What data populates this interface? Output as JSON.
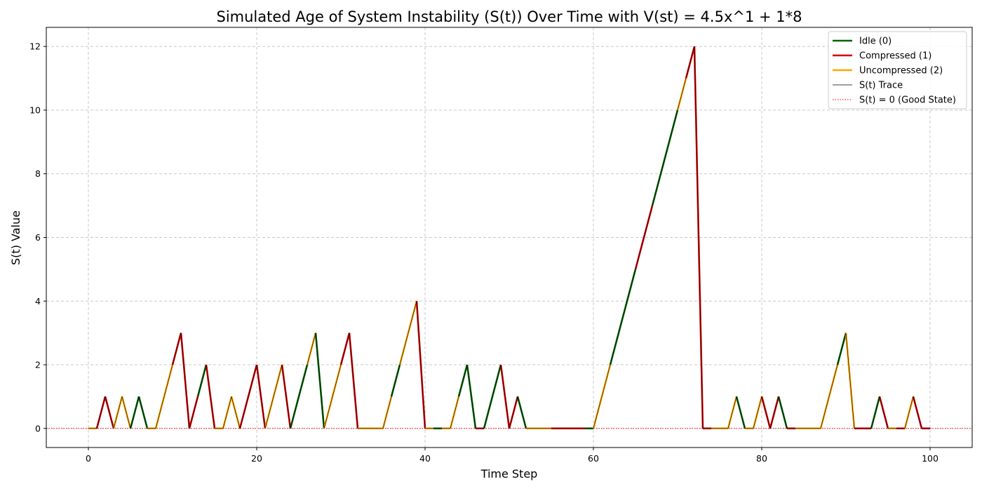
{
  "chart_data": {
    "type": "line",
    "title": "Simulated Age of System Instability (S(t)) Over Time with V(st) = 4.5x^1 + 1*8",
    "xlabel": "Time Step",
    "ylabel": "S(t) Value",
    "xlim": [
      -5,
      105
    ],
    "ylim": [
      -0.6,
      12.6
    ],
    "xticks": [
      0,
      20,
      40,
      60,
      80,
      100
    ],
    "yticks": [
      0,
      2,
      4,
      6,
      8,
      10,
      12
    ],
    "grid": true,
    "legend_position": "top-right",
    "x": [
      0,
      1,
      2,
      3,
      4,
      5,
      6,
      7,
      8,
      9,
      10,
      11,
      12,
      13,
      14,
      15,
      16,
      17,
      18,
      19,
      20,
      21,
      22,
      23,
      24,
      25,
      26,
      27,
      28,
      29,
      30,
      31,
      32,
      33,
      34,
      35,
      36,
      37,
      38,
      39,
      40,
      41,
      42,
      43,
      44,
      45,
      46,
      47,
      48,
      49,
      50,
      51,
      52,
      53,
      54,
      55,
      56,
      57,
      58,
      59,
      60,
      61,
      62,
      63,
      64,
      65,
      66,
      67,
      68,
      69,
      70,
      71,
      72,
      73,
      74,
      75,
      76,
      77,
      78,
      79,
      80,
      81,
      82,
      83,
      84,
      85,
      86,
      87,
      88,
      89,
      90,
      91,
      92,
      93,
      94,
      95,
      96,
      97,
      98,
      99,
      100
    ],
    "s_values": [
      0,
      0,
      1,
      0,
      1,
      0,
      1,
      0,
      0,
      1,
      2,
      3,
      0,
      1,
      2,
      0,
      0,
      1,
      0,
      1,
      2,
      0,
      1,
      2,
      0,
      1,
      2,
      3,
      0,
      1,
      2,
      3,
      0,
      0,
      0,
      0,
      1,
      2,
      3,
      4,
      0,
      0,
      0,
      0,
      1,
      2,
      0,
      0,
      1,
      2,
      0,
      1,
      0,
      0,
      0,
      0,
      0,
      0,
      0,
      0,
      0,
      1,
      2,
      3,
      4,
      5,
      6,
      7,
      8,
      9,
      10,
      11,
      12,
      0,
      0,
      0,
      0,
      1,
      0,
      0,
      1,
      0,
      1,
      0,
      0,
      0,
      0,
      0,
      1,
      2,
      3,
      0,
      0,
      0,
      1,
      0,
      0,
      0,
      1,
      0,
      0
    ],
    "states": [
      2,
      1,
      1,
      2,
      2,
      0,
      0,
      2,
      2,
      2,
      1,
      1,
      1,
      0,
      1,
      2,
      2,
      2,
      1,
      1,
      1,
      2,
      2,
      1,
      0,
      0,
      2,
      0,
      2,
      2,
      1,
      1,
      2,
      2,
      2,
      2,
      0,
      2,
      2,
      1,
      2,
      0,
      2,
      2,
      0,
      0,
      1,
      0,
      0,
      1,
      1,
      0,
      2,
      2,
      2,
      1,
      1,
      1,
      1,
      0,
      2,
      2,
      0,
      0,
      0,
      1,
      1,
      0,
      0,
      0,
      2,
      1,
      1,
      1,
      2,
      2,
      2,
      0,
      2,
      2,
      1,
      1,
      0,
      1,
      2,
      2,
      2,
      2,
      2,
      0,
      2,
      1,
      1,
      0,
      1,
      2,
      1,
      2,
      1,
      1,
      1
    ],
    "series": [
      {
        "name": "Idle (0)",
        "state": 0,
        "color": "#006400",
        "style": "solid"
      },
      {
        "name": "Compressed (1)",
        "state": 1,
        "color": "#d40000",
        "style": "solid"
      },
      {
        "name": "Uncompressed (2)",
        "state": 2,
        "color": "#ffa500",
        "style": "solid"
      },
      {
        "name": "S(t) Trace",
        "color": "#000000",
        "style": "thin"
      },
      {
        "name": "S(t) = 0 (Good State)",
        "value": 0,
        "color": "#ff0000",
        "style": "dotted"
      }
    ]
  }
}
